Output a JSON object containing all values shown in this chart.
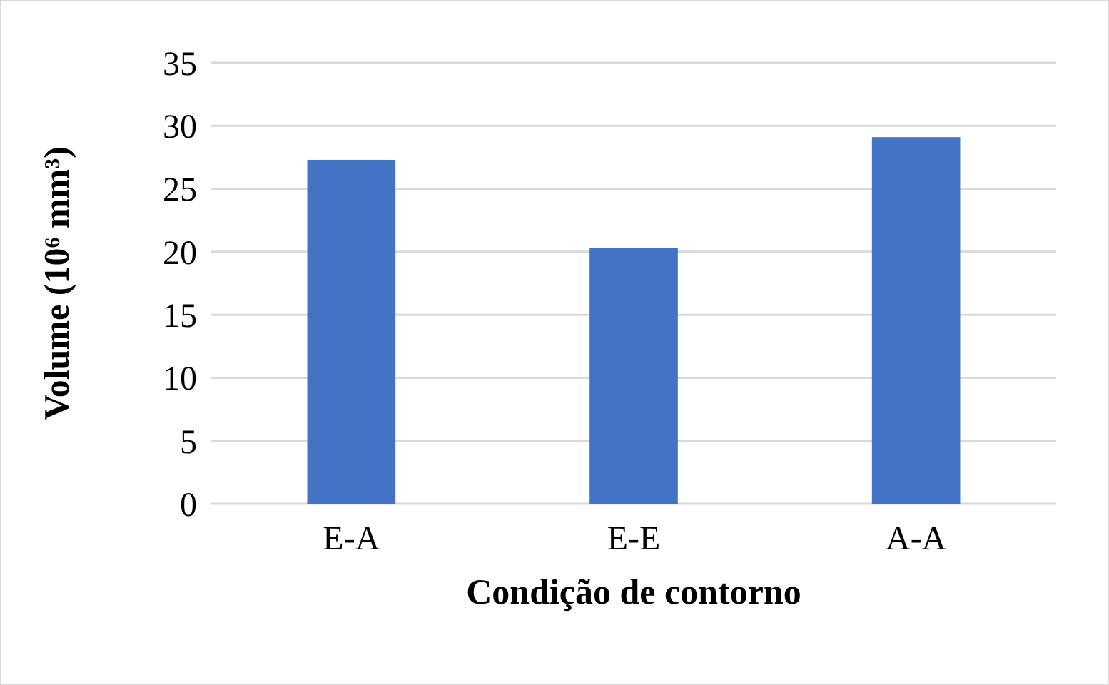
{
  "chart_data": {
    "type": "bar",
    "xlabel": "Condição de contorno",
    "ylabel": "Volume (10⁶ mm³)",
    "categories": [
      "E-A",
      "E-E",
      "A-A"
    ],
    "values": [
      27.3,
      20.3,
      29.1
    ],
    "color": "#4472c4",
    "ylim": [
      0,
      35
    ],
    "yticks": [
      0,
      5,
      10,
      15,
      20,
      25,
      30,
      35
    ],
    "grid": "y"
  }
}
